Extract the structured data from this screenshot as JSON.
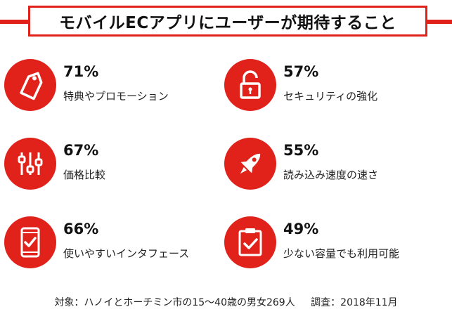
{
  "header": {
    "title": "モバイルECアプリにユーザーが期待すること"
  },
  "items": [
    {
      "icon": "price-tag-icon",
      "percent": "71%",
      "label": "特典やプロモーション"
    },
    {
      "icon": "padlock-icon",
      "percent": "57%",
      "label": "セキュリティの強化"
    },
    {
      "icon": "sliders-icon",
      "percent": "67%",
      "label": "価格比較"
    },
    {
      "icon": "rocket-icon",
      "percent": "55%",
      "label": "読み込み速度の速さ"
    },
    {
      "icon": "smartphone-check-icon",
      "percent": "66%",
      "label": "使いやすいインタフェース"
    },
    {
      "icon": "clipboard-check-icon",
      "percent": "49%",
      "label": "少ない容量でも利用可能"
    }
  ],
  "footer": {
    "subject": "対象：ハノイとホーチミン市の15～40歳の男女269人",
    "survey": "調査：2018年11月"
  },
  "colors": {
    "accent": "#e0221b",
    "text": "#1a1a1a",
    "background": "#ffffff"
  }
}
